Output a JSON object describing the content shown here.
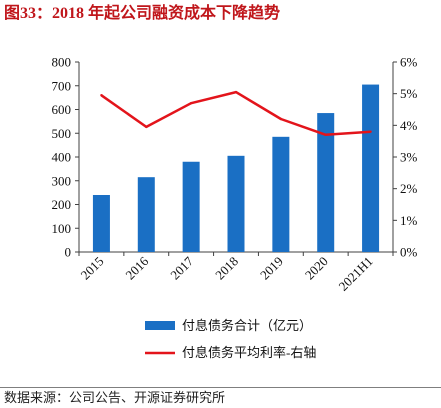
{
  "title": "图33：2018 年起公司融资成本下降趋势",
  "chart_data": {
    "type": "bar",
    "categories": [
      "2015",
      "2016",
      "2017",
      "2018",
      "2019",
      "2020",
      "2021H1"
    ],
    "series": [
      {
        "name": "付息债务合计（亿元）",
        "type": "bar",
        "axis": "left",
        "color": "#1a6fc4",
        "values": [
          240,
          315,
          380,
          405,
          485,
          585,
          705
        ]
      },
      {
        "name": "付息债务平均利率-右轴",
        "type": "line",
        "axis": "right",
        "color": "#e3141b",
        "values": [
          4.95,
          3.95,
          4.7,
          5.05,
          4.2,
          3.7,
          3.8
        ]
      }
    ],
    "y_left": {
      "min": 0,
      "max": 800,
      "step": 100,
      "tick_labels": [
        "0",
        "100",
        "200",
        "300",
        "400",
        "500",
        "600",
        "700",
        "800"
      ]
    },
    "y_right": {
      "min": 0,
      "max": 6,
      "step": 1,
      "unit": "%",
      "tick_labels": [
        "0%",
        "1%",
        "2%",
        "3%",
        "4%",
        "5%",
        "6%"
      ]
    },
    "grid": false,
    "legend_position": "bottom",
    "axis_color": "#404040"
  },
  "source": "数据来源：公司公告、开源证券研究所"
}
